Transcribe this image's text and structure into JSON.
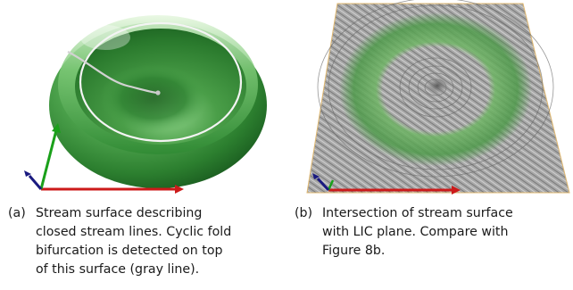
{
  "panels": [
    {
      "tag": "(a)",
      "caption_lines": [
        "Stream surface describing",
        "closed stream lines. Cyclic fold",
        "bifurcation is detected on top",
        "of this surface (gray line)."
      ],
      "image": "green bowl-shaped stream surface with white closed stream line and gray spiral line, coordinate axes in corner"
    },
    {
      "tag": "(b)",
      "caption_lines": [
        "Intersection of stream surface",
        "with LIC plane. Compare with",
        "Figure 8b."
      ],
      "image": "gray LIC texture plane with green ring showing stream surface intersection, coordinate axes in corner"
    }
  ],
  "colors": {
    "surface_green": "#4aa24a",
    "surface_dark": "#1f6a24",
    "axis_red": "#cc1a1a",
    "axis_green": "#1aa01a",
    "axis_blue": "#1a1a80",
    "lic_gray": "#9a9a9a"
  }
}
